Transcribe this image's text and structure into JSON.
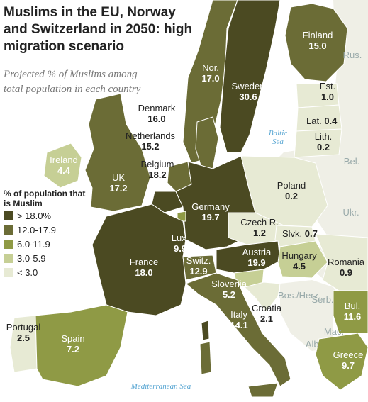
{
  "title": "Muslims in the EU, Norway and Switzerland in 2050: high migration scenario",
  "subtitle": "Projected % of Muslims among total population in each country",
  "legend": {
    "title": "% of population that is Muslim",
    "items": [
      {
        "label": "> 18.0%",
        "color": "#4b4a22"
      },
      {
        "label": "12.0-17.9",
        "color": "#6b6c36"
      },
      {
        "label": "6.0-11.9",
        "color": "#8f9a45"
      },
      {
        "label": "3.0-5.9",
        "color": "#c6cf95"
      },
      {
        "label": "< 3.0",
        "color": "#e7ead4"
      }
    ]
  },
  "countries": {
    "finland": {
      "name": "Finland",
      "value": "15.0"
    },
    "norway": {
      "name": "Nor.",
      "value": "17.0"
    },
    "sweden": {
      "name": "Sweden",
      "value": "30.6"
    },
    "estonia": {
      "name": "Est.",
      "value": "1.0"
    },
    "latvia": {
      "name": "Lat.",
      "value": "0.4"
    },
    "lithuania": {
      "name": "Lith.",
      "value": "0.2"
    },
    "denmark": {
      "name": "Denmark",
      "value": "16.0"
    },
    "netherlands": {
      "name": "Netherlands",
      "value": "15.2"
    },
    "belgium": {
      "name": "Belgium",
      "value": "18.2"
    },
    "ireland": {
      "name": "Ireland",
      "value": "4.4"
    },
    "uk": {
      "name": "UK",
      "value": "17.2"
    },
    "germany": {
      "name": "Germany",
      "value": "19.7"
    },
    "poland": {
      "name": "Poland",
      "value": "0.2"
    },
    "czech": {
      "name": "Czech R.",
      "value": "1.2"
    },
    "slovakia": {
      "name": "Slvk.",
      "value": "0.7"
    },
    "luxembourg": {
      "name": "Lux.",
      "value": "9.9"
    },
    "france": {
      "name": "France",
      "value": "18.0"
    },
    "switzerland": {
      "name": "Switz.",
      "value": "12.9"
    },
    "austria": {
      "name": "Austria",
      "value": "19.9"
    },
    "hungary": {
      "name": "Hungary",
      "value": "4.5"
    },
    "romania": {
      "name": "Romania",
      "value": "0.9"
    },
    "slovenia": {
      "name": "Slovenia",
      "value": "5.2"
    },
    "croatia": {
      "name": "Croatia",
      "value": "2.1"
    },
    "italy": {
      "name": "Italy",
      "value": "14.1"
    },
    "bulgaria": {
      "name": "Bul.",
      "value": "11.6"
    },
    "portugal": {
      "name": "Portugal",
      "value": "2.5"
    },
    "spain": {
      "name": "Spain",
      "value": "7.2"
    },
    "greece": {
      "name": "Greece",
      "value": "9.7"
    }
  },
  "non_study": [
    "Rus.",
    "Bel.",
    "Ukr.",
    "Bos./Herz.",
    "Serb.",
    "Mac.",
    "Alb."
  ],
  "seas": {
    "baltic": "Baltic Sea",
    "mediterranean": "Mediterranean Sea"
  },
  "colors": {
    "sea": "#ffffff",
    "non_study_land": "#efefe6",
    "border": "#ffffff",
    "sea_label": "#5aa7d3"
  }
}
